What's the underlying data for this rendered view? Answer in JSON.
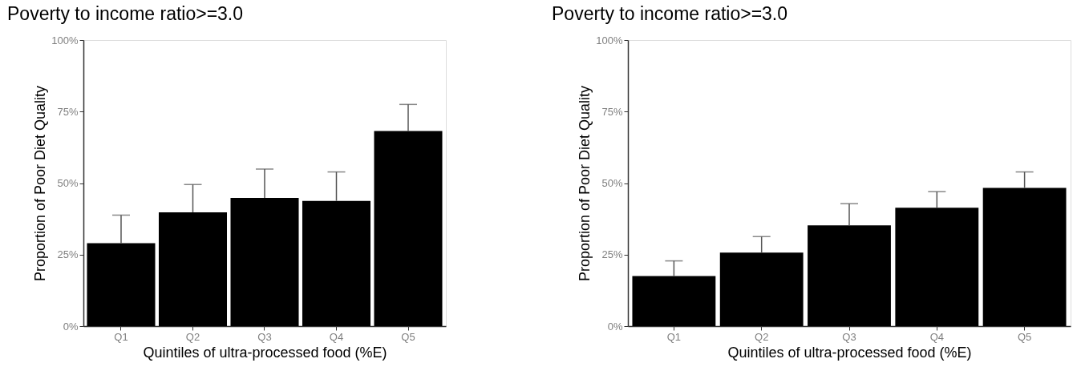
{
  "chart_data": [
    {
      "type": "bar",
      "title": "Poverty to income ratio>=3.0",
      "xlabel": "Quintiles of ultra-processed food (%E)",
      "ylabel": "Proportion of Poor Diet Quality",
      "categories": [
        "Q1",
        "Q2",
        "Q3",
        "Q4",
        "Q5"
      ],
      "values": [
        29.0,
        39.8,
        44.8,
        43.8,
        68.2
      ],
      "color": "#000000",
      "errors": [
        [
          29.0,
          38.8
        ],
        [
          39.8,
          49.5
        ],
        [
          44.8,
          54.9
        ],
        [
          43.8,
          53.9
        ],
        [
          68.2,
          77.5
        ]
      ],
      "ylim": [
        0,
        100
      ],
      "yticks": [
        {
          "value": 0,
          "label": "0%"
        },
        {
          "value": 25,
          "label": "25%"
        },
        {
          "value": 50,
          "label": "50%"
        },
        {
          "value": 75,
          "label": "75%"
        },
        {
          "value": 100,
          "label": "100%"
        }
      ]
    },
    {
      "type": "bar",
      "title": "Poverty to income ratio>=3.0",
      "xlabel": "Quintiles of ultra-processed food (%E)",
      "ylabel": "Proportion of Poor Diet Quality",
      "categories": [
        "Q1",
        "Q2",
        "Q3",
        "Q4",
        "Q5"
      ],
      "values": [
        17.5,
        25.7,
        35.2,
        41.4,
        48.3
      ],
      "color": "#000000",
      "errors": [
        [
          17.5,
          22.8
        ],
        [
          25.7,
          31.3
        ],
        [
          35.2,
          42.8
        ],
        [
          41.4,
          47.0
        ],
        [
          48.3,
          53.9
        ]
      ],
      "ylim": [
        0,
        100
      ],
      "yticks": [
        {
          "value": 0,
          "label": "0%"
        },
        {
          "value": 25,
          "label": "25%"
        },
        {
          "value": 50,
          "label": "50%"
        },
        {
          "value": 75,
          "label": "75%"
        },
        {
          "value": 100,
          "label": "100%"
        }
      ]
    }
  ]
}
